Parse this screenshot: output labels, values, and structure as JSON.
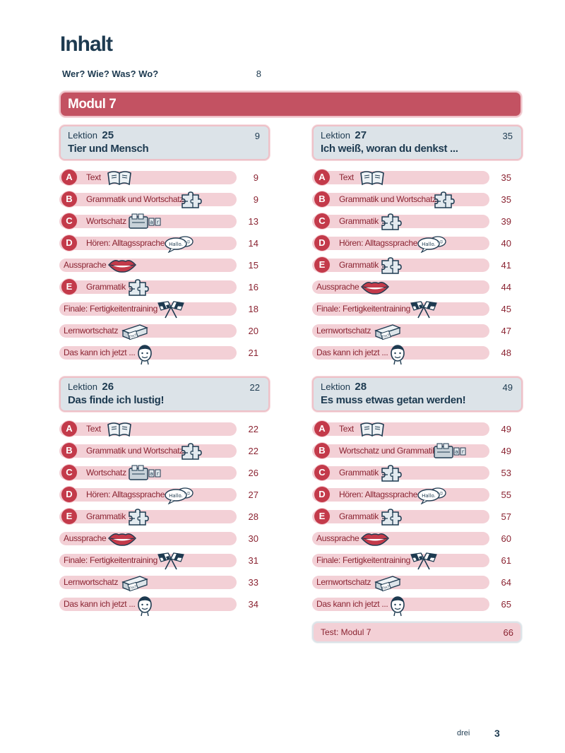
{
  "page_title": "Inhalt",
  "intro": {
    "label": "Wer? Wie? Was? Wo?",
    "page": "8"
  },
  "modul_title": "Modul 7",
  "lektions": [
    {
      "word": "Lektion",
      "number": "25",
      "title": "Tier und Mensch",
      "page": "9",
      "entries": [
        {
          "letter": "A",
          "label": "Text",
          "icon": "book-icon",
          "page": "9"
        },
        {
          "letter": "B",
          "label": "Grammatik und Wortschatz",
          "icon": "puzzle-icon",
          "page": "9"
        },
        {
          "letter": "C",
          "label": "Wortschatz",
          "icon": "letter-box-icon",
          "page": "13"
        },
        {
          "letter": "D",
          "label": "Hören: Alltagssprache",
          "icon": "speech-bubbles-icon",
          "page": "14"
        },
        {
          "letter": "",
          "label": "Aussprache",
          "icon": "lips-icon",
          "page": "15"
        },
        {
          "letter": "E",
          "label": "Grammatik",
          "icon": "puzzle-icon",
          "page": "16"
        },
        {
          "letter": "",
          "label": "Finale: Fertigkeitentraining",
          "icon": "checkered-flags-icon",
          "page": "18"
        },
        {
          "letter": "",
          "label": "Lernwortschatz",
          "icon": "card-box-icon",
          "page": "20"
        },
        {
          "letter": "",
          "label": "Das kann ich jetzt ...",
          "icon": "face-icon",
          "page": "21"
        }
      ]
    },
    {
      "word": "Lektion",
      "number": "27",
      "title": "Ich weiß, woran du denkst ...",
      "page": "35",
      "entries": [
        {
          "letter": "A",
          "label": "Text",
          "icon": "book-icon",
          "page": "35"
        },
        {
          "letter": "B",
          "label": "Grammatik und Wortschatz",
          "icon": "puzzle-icon",
          "page": "35"
        },
        {
          "letter": "C",
          "label": "Grammatik",
          "icon": "puzzle-icon",
          "page": "39"
        },
        {
          "letter": "D",
          "label": "Hören: Alltagssprache",
          "icon": "speech-bubbles-icon",
          "page": "40"
        },
        {
          "letter": "E",
          "label": "Grammatik",
          "icon": "puzzle-icon",
          "page": "41"
        },
        {
          "letter": "",
          "label": "Aussprache",
          "icon": "lips-icon",
          "page": "44"
        },
        {
          "letter": "",
          "label": "Finale: Fertigkeitentraining",
          "icon": "checkered-flags-icon",
          "page": "45"
        },
        {
          "letter": "",
          "label": "Lernwortschatz",
          "icon": "card-box-icon",
          "page": "47"
        },
        {
          "letter": "",
          "label": "Das kann ich jetzt ...",
          "icon": "face-icon",
          "page": "48"
        }
      ]
    },
    {
      "word": "Lektion",
      "number": "26",
      "title": "Das finde ich lustig!",
      "page": "22",
      "entries": [
        {
          "letter": "A",
          "label": "Text",
          "icon": "book-icon",
          "page": "22"
        },
        {
          "letter": "B",
          "label": "Grammatik und Wortschatz",
          "icon": "puzzle-icon",
          "page": "22"
        },
        {
          "letter": "C",
          "label": "Wortschatz",
          "icon": "letter-box-icon",
          "page": "26"
        },
        {
          "letter": "D",
          "label": "Hören: Alltagssprache",
          "icon": "speech-bubbles-icon",
          "page": "27"
        },
        {
          "letter": "E",
          "label": "Grammatik",
          "icon": "puzzle-icon",
          "page": "28"
        },
        {
          "letter": "",
          "label": "Aussprache",
          "icon": "lips-icon",
          "page": "30"
        },
        {
          "letter": "",
          "label": "Finale: Fertigkeitentraining",
          "icon": "checkered-flags-icon",
          "page": "31"
        },
        {
          "letter": "",
          "label": "Lernwortschatz",
          "icon": "card-box-icon",
          "page": "33"
        },
        {
          "letter": "",
          "label": "Das kann ich jetzt ...",
          "icon": "face-icon",
          "page": "34"
        }
      ]
    },
    {
      "word": "Lektion",
      "number": "28",
      "title": "Es muss etwas getan werden!",
      "page": "49",
      "entries": [
        {
          "letter": "A",
          "label": "Text",
          "icon": "book-icon",
          "page": "49"
        },
        {
          "letter": "B",
          "label": "Wortschatz und Grammatik",
          "icon": "letter-box-icon",
          "page": "49"
        },
        {
          "letter": "C",
          "label": "Grammatik",
          "icon": "puzzle-icon",
          "page": "53"
        },
        {
          "letter": "D",
          "label": "Hören: Alltagssprache",
          "icon": "speech-bubbles-icon",
          "page": "55"
        },
        {
          "letter": "E",
          "label": "Grammatik",
          "icon": "puzzle-icon",
          "page": "57"
        },
        {
          "letter": "",
          "label": "Aussprache",
          "icon": "lips-icon",
          "page": "60"
        },
        {
          "letter": "",
          "label": "Finale: Fertigkeitentraining",
          "icon": "checkered-flags-icon",
          "page": "61"
        },
        {
          "letter": "",
          "label": "Lernwortschatz",
          "icon": "card-box-icon",
          "page": "64"
        },
        {
          "letter": "",
          "label": "Das kann ich jetzt ...",
          "icon": "face-icon",
          "page": "65"
        }
      ]
    }
  ],
  "test": {
    "label": "Test: Modul 7",
    "page": "66"
  },
  "footer": {
    "word": "drei",
    "number": "3"
  },
  "speech_bubble_text": "Hallo.",
  "colors": {
    "accent_red": "#c35262",
    "letter_red": "#c33a4a",
    "entry_pink": "#f3d0d6",
    "header_gray": "#dce3e8",
    "navy": "#1d3a50"
  }
}
